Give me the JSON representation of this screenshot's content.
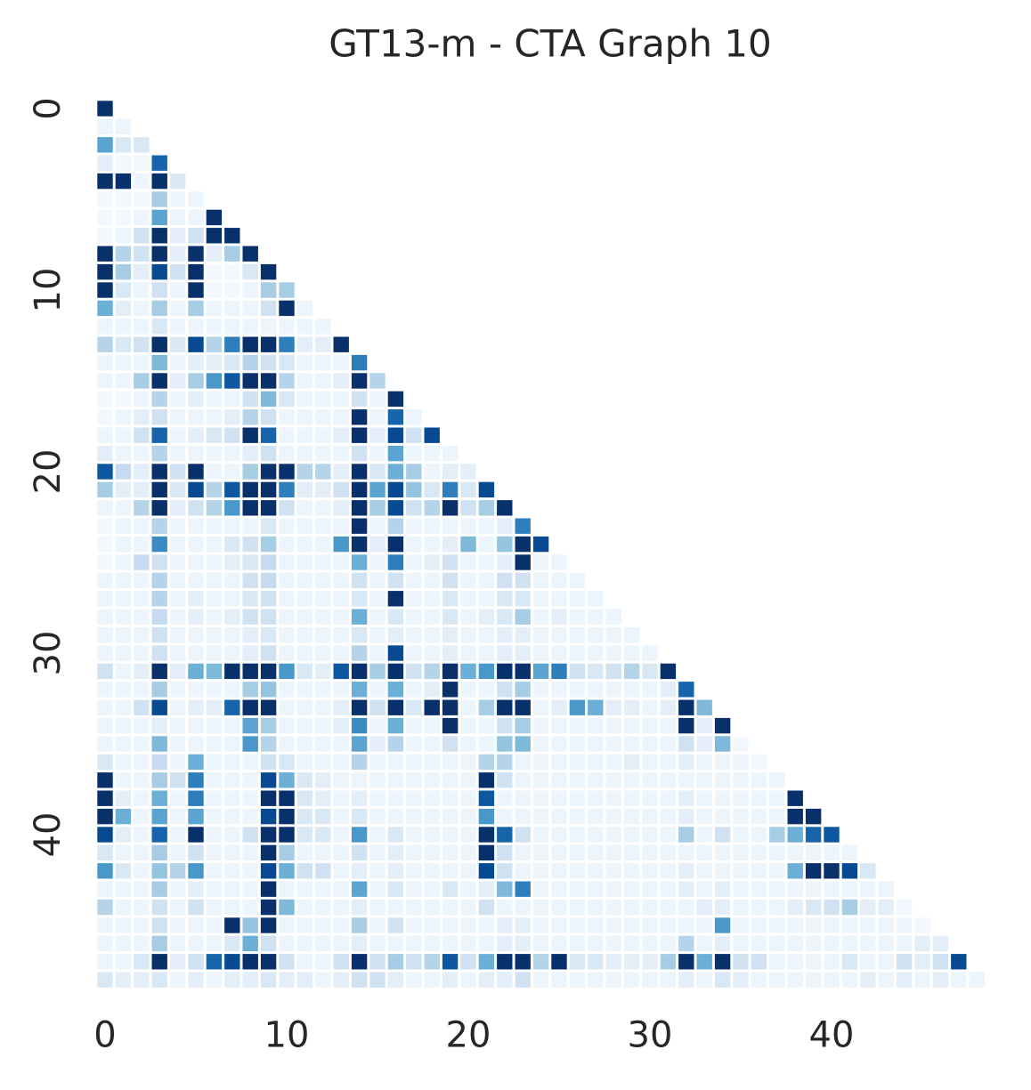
{
  "chart_data": {
    "type": "heatmap",
    "title": "GT13-m - CTA Graph 10",
    "colors": [
      "#f7fbff",
      "#deebf7",
      "#c6dbef",
      "#9ecae1",
      "#6baed6",
      "#4292c6",
      "#2171b5",
      "#08519c",
      "#08306b"
    ],
    "vlim": [
      0,
      1
    ],
    "xticks": [
      0,
      10,
      20,
      30,
      40
    ],
    "yticks": [
      0,
      10,
      20,
      30,
      40
    ],
    "values": [
      [
        1
      ],
      [
        0.05,
        0.05
      ],
      [
        0.55,
        0.15,
        0.15
      ],
      [
        0.1,
        0.02,
        0.02,
        0.8
      ],
      [
        1,
        1,
        0.05,
        1,
        0.15
      ],
      [
        0.02,
        0.02,
        0.02,
        0.35,
        0.05,
        0.05
      ],
      [
        0.02,
        0.02,
        0.05,
        0.55,
        0.05,
        0.05,
        1
      ],
      [
        0.02,
        0.05,
        0.2,
        1,
        0.1,
        0.2,
        1,
        1
      ],
      [
        1,
        0.3,
        0.2,
        1,
        0.1,
        1,
        0.1,
        0.35,
        1
      ],
      [
        1,
        0.35,
        0.1,
        0.9,
        0.2,
        1,
        0.02,
        0.02,
        0.15,
        1
      ],
      [
        1,
        0.15,
        0.05,
        0.2,
        0.05,
        1,
        0.02,
        0.02,
        0.05,
        0.35,
        0.35
      ],
      [
        0.5,
        0.1,
        0.05,
        0.35,
        0.05,
        0.35,
        0.05,
        0.05,
        0.05,
        0.2,
        1,
        0.05
      ],
      [
        0.05,
        0.05,
        0.05,
        0.15,
        0.05,
        0.05,
        0.05,
        0.05,
        0.05,
        0.05,
        0.05,
        0.05,
        0.05
      ],
      [
        0.3,
        0.15,
        0.2,
        1,
        0.15,
        0.9,
        0.3,
        0.7,
        1,
        1,
        0.7,
        0.1,
        0.1,
        1
      ],
      [
        0.05,
        0.05,
        0.05,
        0.45,
        0.05,
        0.1,
        0.1,
        0.15,
        0.3,
        0.2,
        0.15,
        0.05,
        0.05,
        0.05,
        0.7
      ],
      [
        0.05,
        0.05,
        0.35,
        1,
        0.1,
        0.35,
        0.6,
        0.85,
        1,
        1,
        0.3,
        0.05,
        0.05,
        0.1,
        1,
        0.3
      ],
      [
        0.02,
        0.02,
        0.05,
        0.3,
        0.05,
        0.1,
        0.05,
        0.05,
        0.2,
        0.45,
        0.15,
        0.05,
        0.05,
        0.05,
        0.2,
        0.05,
        1
      ],
      [
        0.02,
        0.05,
        0.1,
        0.2,
        0.05,
        0.05,
        0.05,
        0.1,
        0.3,
        0.2,
        0.05,
        0.05,
        0.05,
        0.05,
        1,
        0.05,
        0.8,
        0.05
      ],
      [
        0.05,
        0.05,
        0.2,
        0.8,
        0.05,
        0.1,
        0.15,
        0.2,
        1,
        0.8,
        0.05,
        0.05,
        0.05,
        0.1,
        1,
        0.1,
        0.9,
        0.2,
        0.9
      ],
      [
        0.1,
        0.05,
        0.05,
        0.3,
        0.05,
        0.05,
        0.05,
        0.05,
        0.1,
        0.2,
        0.05,
        0.05,
        0.05,
        0.05,
        0.2,
        0.05,
        0.55,
        0.05,
        0.05,
        0.05
      ],
      [
        0.85,
        0.25,
        0.1,
        1,
        0.2,
        1,
        0.05,
        0.05,
        0.35,
        1,
        1,
        0.3,
        0.3,
        0.1,
        1,
        0.15,
        0.5,
        0.35,
        0.05,
        0.1,
        0.1
      ],
      [
        0.35,
        0.1,
        0.1,
        1,
        0.15,
        0.9,
        0.3,
        0.85,
        1,
        1,
        0.7,
        0.1,
        0.1,
        0.2,
        1,
        0.55,
        0.9,
        0.4,
        0.15,
        0.7,
        0.15,
        0.9
      ],
      [
        0.05,
        0.05,
        0.3,
        1,
        0.1,
        0.2,
        0.3,
        0.6,
        1,
        1,
        0.2,
        0.05,
        0.05,
        0.1,
        1,
        0.35,
        0.9,
        0.2,
        0.3,
        1,
        0.2,
        0.35,
        1
      ],
      [
        0.02,
        0.05,
        0.05,
        0.3,
        0.05,
        0.05,
        0.05,
        0.05,
        0.05,
        0.15,
        0.05,
        0.05,
        0.05,
        0.05,
        1,
        0.05,
        0.3,
        0.05,
        0.05,
        0.05,
        0.05,
        0.05,
        0.1,
        0.7
      ],
      [
        0.02,
        0.05,
        0.05,
        0.65,
        0.05,
        0.05,
        0.05,
        0.15,
        0.2,
        0.35,
        0.05,
        0.05,
        0.05,
        0.6,
        1,
        0.1,
        1,
        0.05,
        0.05,
        0.1,
        0.45,
        0.05,
        0.4,
        1,
        0.9
      ],
      [
        0.02,
        0.05,
        0.25,
        0.2,
        0.05,
        0.05,
        0.05,
        0.1,
        0.15,
        0.25,
        0.05,
        0.05,
        0.05,
        0.05,
        0.5,
        0.05,
        0.7,
        0.05,
        0.1,
        0.2,
        0.05,
        0.05,
        0.1,
        1,
        0.05,
        0.05
      ],
      [
        0.05,
        0.05,
        0.05,
        0.3,
        0.05,
        0.05,
        0.05,
        0.05,
        0.2,
        0.25,
        0.05,
        0.05,
        0.05,
        0.05,
        0.2,
        0.05,
        0.2,
        0.05,
        0.05,
        0.2,
        0.05,
        0.05,
        0.2,
        0.2,
        0.05,
        0.05,
        0.05
      ],
      [
        0.05,
        0.05,
        0.05,
        0.3,
        0.05,
        0.1,
        0.05,
        0.05,
        0.15,
        0.2,
        0.05,
        0.05,
        0.05,
        0.05,
        0.15,
        0.05,
        1,
        0.05,
        0.05,
        0.15,
        0.05,
        0.05,
        0.15,
        0.15,
        0.05,
        0.05,
        0.05,
        0.05
      ],
      [
        0.05,
        0.05,
        0.05,
        0.25,
        0.05,
        0.1,
        0.05,
        0.1,
        0.2,
        0.2,
        0.05,
        0.05,
        0.05,
        0.05,
        0.5,
        0.05,
        0.15,
        0.05,
        0.05,
        0.15,
        0.05,
        0.1,
        0.15,
        0.35,
        0.05,
        0.1,
        0.05,
        0.05,
        0.05
      ],
      [
        0.05,
        0.05,
        0.05,
        0.2,
        0.05,
        0.05,
        0.05,
        0.05,
        0.1,
        0.15,
        0.05,
        0.05,
        0.05,
        0.05,
        0.15,
        0.05,
        0.1,
        0.05,
        0.05,
        0.1,
        0.05,
        0.05,
        0.1,
        0.1,
        0.05,
        0.05,
        0.05,
        0.05,
        0.05,
        0.05
      ],
      [
        0.05,
        0.05,
        0.05,
        0.2,
        0.05,
        0.05,
        0.05,
        0.05,
        0.1,
        0.2,
        0.05,
        0.05,
        0.05,
        0.05,
        0.3,
        0.05,
        0.9,
        0.05,
        0.05,
        0.1,
        0.05,
        0.05,
        0.1,
        0.1,
        0.05,
        0.05,
        0.05,
        0.05,
        0.05,
        0.05,
        0.05
      ],
      [
        0.2,
        0.05,
        0.1,
        1,
        0.1,
        0.5,
        0.45,
        1,
        1,
        1,
        0.6,
        0.15,
        0.1,
        0.85,
        1,
        0.35,
        1,
        0.2,
        0.3,
        1,
        0.5,
        0.6,
        1,
        1,
        0.55,
        0.7,
        0.2,
        0.15,
        0.2,
        0.3,
        0.15,
        1
      ],
      [
        0.05,
        0.05,
        0.05,
        0.35,
        0.05,
        0.05,
        0.05,
        0.05,
        0.35,
        0.4,
        0.05,
        0.05,
        0.05,
        0.05,
        0.5,
        0.05,
        0.5,
        0.05,
        0.1,
        1,
        0.05,
        0.05,
        0.2,
        0.35,
        0.05,
        0.05,
        0.05,
        0.05,
        0.05,
        0.05,
        0.05,
        0.1,
        0.8
      ],
      [
        0.05,
        0.05,
        0.2,
        0.9,
        0.05,
        0.1,
        0.1,
        0.8,
        1,
        1,
        0.05,
        0.05,
        0.05,
        0.1,
        1,
        0.2,
        1,
        0.15,
        1,
        1,
        0.05,
        0.35,
        1,
        1,
        0.05,
        0.1,
        0.6,
        0.5,
        0.1,
        0.1,
        0.05,
        0.1,
        1,
        0.45
      ],
      [
        0.05,
        0.05,
        0.05,
        0.1,
        0.05,
        0.05,
        0.05,
        0.05,
        0.55,
        0.35,
        0.05,
        0.05,
        0.05,
        0.1,
        0.65,
        0.05,
        0.5,
        0.05,
        0.05,
        1,
        0.05,
        0.05,
        0.2,
        0.35,
        0.05,
        0.05,
        0.05,
        0.05,
        0.05,
        0.05,
        0.05,
        0.05,
        1,
        0.1,
        1
      ],
      [
        0.05,
        0.05,
        0.05,
        0.45,
        0.05,
        0.05,
        0.05,
        0.05,
        0.6,
        0.3,
        0.05,
        0.05,
        0.05,
        0.05,
        0.55,
        0.1,
        0.3,
        0.05,
        0.05,
        0.2,
        0.05,
        0.05,
        0.4,
        0.45,
        0.05,
        0.05,
        0.05,
        0.05,
        0.05,
        0.05,
        0.05,
        0.05,
        0.2,
        0.1,
        0.45,
        0.02
      ],
      [
        0.15,
        0.05,
        0.05,
        0.25,
        0.05,
        0.5,
        0.05,
        0.05,
        0.05,
        0.2,
        0.15,
        0.05,
        0.05,
        0.05,
        0.3,
        0.05,
        0.05,
        0.05,
        0.05,
        0.05,
        0.05,
        0.3,
        0.3,
        0.05,
        0.05,
        0.05,
        0.05,
        0.05,
        0.05,
        0.1,
        0.05,
        0.05,
        0.1,
        0.05,
        0.05,
        0.05,
        0.02
      ],
      [
        1,
        0.05,
        0.05,
        0.35,
        0.2,
        0.7,
        0.05,
        0.05,
        0.05,
        0.9,
        0.5,
        0.15,
        0.1,
        0.05,
        0.05,
        0.05,
        0.05,
        0.05,
        0.05,
        0.05,
        0.05,
        1,
        0.2,
        0.05,
        0.05,
        0.05,
        0.05,
        0.05,
        0.05,
        0.05,
        0.05,
        0.05,
        0.05,
        0.05,
        0.05,
        0.05,
        0.05,
        0.05
      ],
      [
        1,
        0.1,
        0.05,
        0.5,
        0.05,
        0.7,
        0.05,
        0.05,
        0.05,
        1,
        1,
        0.15,
        0.1,
        0.05,
        0.1,
        0.05,
        0.05,
        0.05,
        0.05,
        0.05,
        0.05,
        0.85,
        0.05,
        0.05,
        0.05,
        0.05,
        0.05,
        0.05,
        0.05,
        0.05,
        0.05,
        0.05,
        0.1,
        0.05,
        0.05,
        0.05,
        0.05,
        0.05,
        1
      ],
      [
        1,
        0.5,
        0.05,
        0.55,
        0.05,
        0.55,
        0.05,
        0.05,
        0.05,
        0.9,
        1,
        0.15,
        0.15,
        0.05,
        0.15,
        0.05,
        0.05,
        0.05,
        0.05,
        0.05,
        0.05,
        0.6,
        0.05,
        0.05,
        0.05,
        0.05,
        0.05,
        0.05,
        0.05,
        0.05,
        0.05,
        0.05,
        0.1,
        0.05,
        0.05,
        0.05,
        0.05,
        0.05,
        1,
        1
      ],
      [
        0.9,
        0.1,
        0.05,
        0.8,
        0.05,
        1,
        0.05,
        0.05,
        0.2,
        1,
        1,
        0.15,
        0.15,
        0.05,
        0.6,
        0.05,
        0.15,
        0.05,
        0.05,
        0.05,
        0.05,
        1,
        0.8,
        0.2,
        0.05,
        0.05,
        0.05,
        0.05,
        0.05,
        0.05,
        0.05,
        0.05,
        0.35,
        0.05,
        0.2,
        0.05,
        0.05,
        0.35,
        0.5,
        0.8,
        0.85
      ],
      [
        0.15,
        0.05,
        0.05,
        0.35,
        0.05,
        0.2,
        0.05,
        0.05,
        0.05,
        1,
        0.35,
        0.05,
        0.05,
        0.05,
        0.2,
        0.05,
        0.1,
        0.05,
        0.05,
        0.05,
        0.05,
        1,
        0.2,
        0.05,
        0.05,
        0.05,
        0.05,
        0.05,
        0.05,
        0.05,
        0.05,
        0.05,
        0.05,
        0.05,
        0.05,
        0.05,
        0.05,
        0.05,
        0.05,
        0.05,
        0.05,
        0.05
      ],
      [
        0.6,
        0.15,
        0.05,
        0.4,
        0.3,
        0.6,
        0.05,
        0.05,
        0.05,
        0.9,
        0.5,
        0.2,
        0.2,
        0.05,
        0.1,
        0.05,
        0.1,
        0.05,
        0.05,
        0.05,
        0.05,
        0.9,
        0.2,
        0.05,
        0.05,
        0.05,
        0.05,
        0.05,
        0.05,
        0.05,
        0.05,
        0.05,
        0.1,
        0.05,
        0.05,
        0.05,
        0.05,
        0.05,
        0.5,
        1,
        1,
        0.9,
        0.15
      ],
      [
        0.05,
        0.05,
        0.05,
        0.35,
        0.05,
        0.1,
        0.05,
        0.05,
        0.05,
        1,
        0.05,
        0.05,
        0.05,
        0.05,
        0.55,
        0.05,
        0.15,
        0.05,
        0.05,
        0.15,
        0.05,
        0.1,
        0.45,
        0.7,
        0.05,
        0.05,
        0.05,
        0.05,
        0.05,
        0.05,
        0.05,
        0.05,
        0.1,
        0.05,
        0.1,
        0.05,
        0.05,
        0.05,
        0.05,
        0.05,
        0.05,
        0.05,
        0.05,
        0.05
      ],
      [
        0.3,
        0.05,
        0.05,
        0.2,
        0.05,
        0.2,
        0.05,
        0.05,
        0.05,
        1,
        0.45,
        0.05,
        0.05,
        0.05,
        0.1,
        0.05,
        0.05,
        0.05,
        0.05,
        0.05,
        0.05,
        0.2,
        0.05,
        0.05,
        0.05,
        0.05,
        0.05,
        0.05,
        0.05,
        0.05,
        0.05,
        0.05,
        0.05,
        0.1,
        0.1,
        0.05,
        0.05,
        0.05,
        0.1,
        0.15,
        0.2,
        0.35,
        0.1,
        0.1,
        0.02
      ],
      [
        0.05,
        0.05,
        0.05,
        0.2,
        0.05,
        0.05,
        0.05,
        1,
        0.4,
        1,
        0.05,
        0.05,
        0.05,
        0.05,
        0.35,
        0.05,
        0.2,
        0.05,
        0.05,
        0.05,
        0.05,
        0.05,
        0.1,
        0.1,
        0.05,
        0.05,
        0.05,
        0.05,
        0.05,
        0.05,
        0.05,
        0.05,
        0.05,
        0.05,
        0.6,
        0.05,
        0.05,
        0.05,
        0.05,
        0.05,
        0.05,
        0.05,
        0.05,
        0.05,
        0.05,
        0.02
      ],
      [
        0.05,
        0.05,
        0.05,
        0.35,
        0.05,
        0.05,
        0.05,
        0.15,
        0.5,
        0.2,
        0.05,
        0.05,
        0.05,
        0.05,
        0.1,
        0.05,
        0.05,
        0.05,
        0.05,
        0.05,
        0.05,
        0.05,
        0.1,
        0.1,
        0.05,
        0.05,
        0.05,
        0.05,
        0.05,
        0.05,
        0.05,
        0.05,
        0.3,
        0.05,
        0.1,
        0.05,
        0.05,
        0.05,
        0.05,
        0.05,
        0.05,
        0.05,
        0.05,
        0.05,
        0.05,
        0.1,
        0.1
      ],
      [
        0.05,
        0.05,
        0.15,
        1,
        0.1,
        0.2,
        0.8,
        0.9,
        1,
        1,
        0.2,
        0.05,
        0.05,
        0.2,
        1,
        0.2,
        0.35,
        0.2,
        0.3,
        0.85,
        0.2,
        0.5,
        1,
        1,
        0.3,
        1,
        0.15,
        0.15,
        0.1,
        0.1,
        0.1,
        0.35,
        1,
        0.5,
        1,
        0.2,
        0.2,
        0.05,
        0.05,
        0.05,
        0.05,
        0.15,
        0.05,
        0.05,
        0.2,
        0.1,
        0.2,
        0.9
      ],
      [
        0.15,
        0.1,
        0.1,
        0.15,
        0.05,
        0.1,
        0.05,
        0.1,
        0.1,
        0.15,
        0.1,
        0.1,
        0.05,
        0.1,
        0.2,
        0.2,
        0.1,
        0.05,
        0.05,
        0.1,
        0.05,
        0.1,
        0.1,
        0.2,
        0.05,
        0.05,
        0.05,
        0.05,
        0.05,
        0.05,
        0.05,
        0.05,
        0.1,
        0.05,
        0.15,
        0.1,
        0.05,
        0.05,
        0.05,
        0.05,
        0.05,
        0.05,
        0.1,
        0.05,
        0.1,
        0.05,
        0.1,
        0.05,
        0.05
      ]
    ]
  }
}
